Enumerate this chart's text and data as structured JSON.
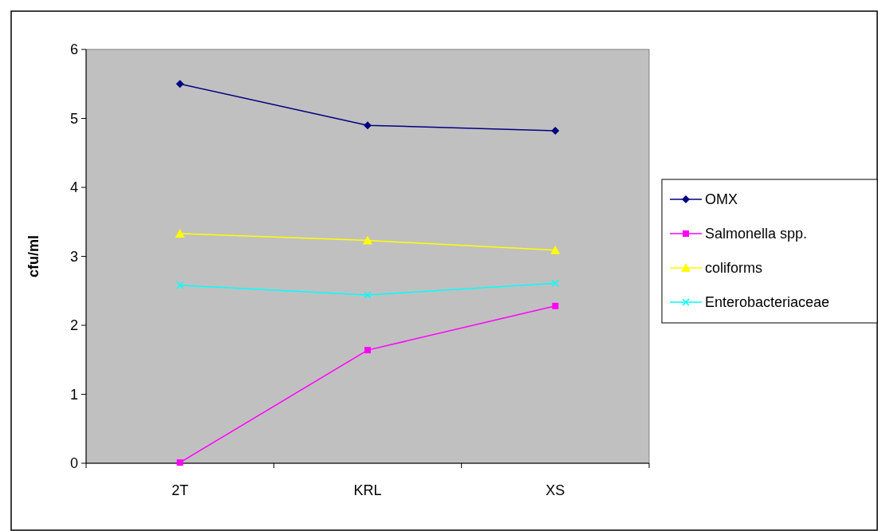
{
  "chart_data": {
    "type": "line",
    "ylabel": "cfu/ml",
    "categories": [
      "2T",
      "KRL",
      "XS"
    ],
    "ylim": [
      0,
      6
    ],
    "yticks": [
      0,
      1,
      2,
      3,
      4,
      5,
      6
    ],
    "grid": false,
    "legend": "right",
    "series": [
      {
        "name": "OMX",
        "color": "#000080",
        "marker": "diamond",
        "values": [
          5.5,
          4.9,
          4.82
        ]
      },
      {
        "name": "Salmonella spp.",
        "color": "#ff00ff",
        "marker": "square",
        "values": [
          0.01,
          1.64,
          2.28
        ]
      },
      {
        "name": "coliforms",
        "color": "#ffff00",
        "marker": "triangle",
        "values": [
          3.33,
          3.23,
          3.09
        ]
      },
      {
        "name": "Enterobacteriaceae",
        "color": "#00ffff",
        "marker": "cross",
        "values": [
          2.58,
          2.44,
          2.61
        ]
      }
    ]
  }
}
